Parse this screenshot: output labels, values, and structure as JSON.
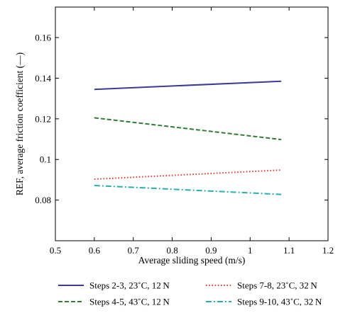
{
  "chart_data": {
    "type": "line",
    "title": "",
    "xlabel": "Average sliding speed (m/s)",
    "ylabel": "REF, average friction coefficient (—)",
    "xlim": [
      0.5,
      1.2
    ],
    "ylim": [
      0.06,
      0.175
    ],
    "xticks": [
      0.5,
      0.6,
      0.7,
      0.8,
      0.9,
      1.0,
      1.1,
      1.2
    ],
    "xtick_labels": [
      "0.5",
      "0.6",
      "0.7",
      "0.8",
      "0.9",
      "1",
      "1.1",
      "1.2"
    ],
    "yticks": [
      0.08,
      0.1,
      0.12,
      0.14,
      0.16
    ],
    "ytick_labels": [
      "0.08",
      "0.1",
      "0.12",
      "0.14",
      "0.16"
    ],
    "grid": false,
    "legend_position": "below",
    "series": [
      {
        "name": "Steps 2-3, 23˚C, 12 N",
        "x": [
          0.6,
          1.08
        ],
        "y": [
          0.1345,
          0.1385
        ],
        "color": "#3a3a9a",
        "style": "solid"
      },
      {
        "name": "Steps 4-5, 43˚C, 12 N",
        "x": [
          0.6,
          1.08
        ],
        "y": [
          0.1205,
          0.1098
        ],
        "color": "#2e7d32",
        "style": "dashed"
      },
      {
        "name": "Steps 7-8, 23˚C, 32 N",
        "x": [
          0.6,
          1.08
        ],
        "y": [
          0.0903,
          0.0948
        ],
        "color": "#e53935",
        "style": "dotted"
      },
      {
        "name": "Steps 9-10, 43˚C, 32 N",
        "x": [
          0.6,
          1.08
        ],
        "y": [
          0.0872,
          0.0828
        ],
        "color": "#26b0b0",
        "style": "dashdot"
      }
    ]
  }
}
